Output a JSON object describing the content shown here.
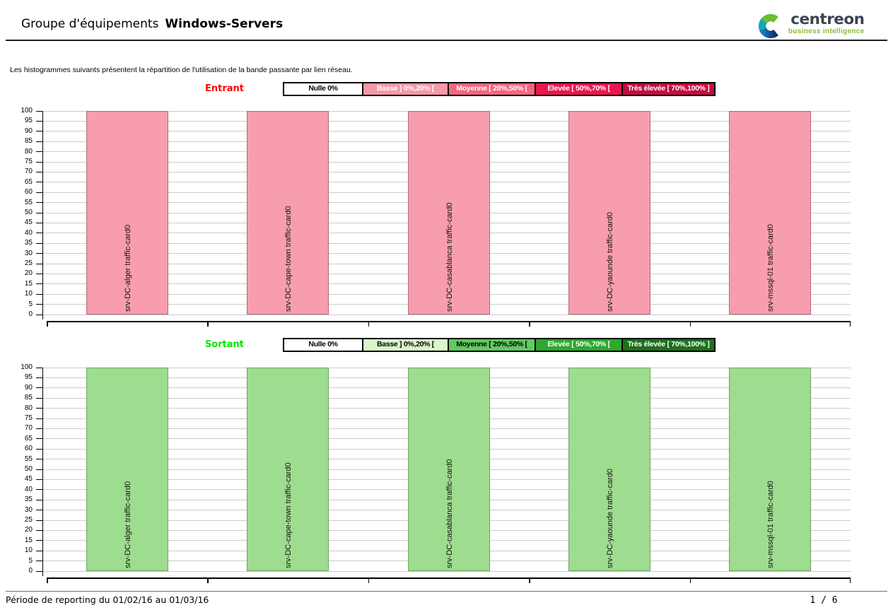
{
  "header": {
    "title_prefix": "Groupe d'équipements",
    "title_group": "Windows-Servers"
  },
  "logo": {
    "brand": "centreon",
    "tagline": "business intelligence",
    "brand_color": "#3b4552",
    "green": "#84bd32",
    "teal": "#12a9b4",
    "blue": "#1653a6"
  },
  "intro_text": "Les histogrammes suivants présentent la répartition de l'utilisation de la bande passante par lien réseau.",
  "footer": {
    "period": "Période de reporting du 01/02/16 au 01/03/16",
    "page_number": "1 / 6"
  },
  "chart_data": [
    {
      "type": "bar",
      "title": "Entrant",
      "title_color": "#ff0000",
      "categories": [
        "srv-DC-alger traffic-card0",
        "srv-DC-cape-town traffic-card0",
        "srv-DC-casablanca traffic-card0",
        "srv-DC-yaounde traffic-card0",
        "srv-mssql-01 traffic-card0"
      ],
      "values": [
        100,
        100,
        100,
        100,
        100
      ],
      "xlabel": "",
      "ylabel": "",
      "ylim": [
        0,
        100
      ],
      "ytick_step": 5,
      "grid": true,
      "legend_position": "top",
      "bar_fill": "#f89dad",
      "bar_border": "#b26a7c",
      "legend": [
        {
          "label": "Nulle 0%",
          "bg": "#ffffff",
          "text": "#000000"
        },
        {
          "label": "Basse ] 0%,20% [",
          "bg": "#f598a8",
          "text": "#ffffff"
        },
        {
          "label": "Moyenne [ 20%,50% [",
          "bg": "#f2677f",
          "text": "#ffffff"
        },
        {
          "label": "Elevée [ 50%,70% [",
          "bg": "#e8174e",
          "text": "#ffffff"
        },
        {
          "label": "Très élevée [ 70%,100% ]",
          "bg": "#c10d3f",
          "text": "#ffffff"
        }
      ]
    },
    {
      "type": "bar",
      "title": "Sortant",
      "title_color": "#00e400",
      "categories": [
        "srv-DC-alger traffic-card0",
        "srv-DC-cape-town traffic-card0",
        "srv-DC-casablanca traffic-card0",
        "srv-DC-yaounde traffic-card0",
        "srv-mssql-01 traffic-card0"
      ],
      "values": [
        100,
        100,
        100,
        100,
        100
      ],
      "xlabel": "",
      "ylabel": "",
      "ylim": [
        0,
        100
      ],
      "ytick_step": 5,
      "grid": true,
      "legend_position": "top",
      "bar_fill": "#9edc8f",
      "bar_border": "#6fa561",
      "legend": [
        {
          "label": "Nulle 0%",
          "bg": "#ffffff",
          "text": "#000000"
        },
        {
          "label": "Basse ] 0%,20% [",
          "bg": "#d9f6cb",
          "text": "#000000"
        },
        {
          "label": "Moyenne [ 20%,50% [",
          "bg": "#5fca5f",
          "text": "#000000"
        },
        {
          "label": "Elevée [ 50%,70% [",
          "bg": "#2ea82e",
          "text": "#ffffff"
        },
        {
          "label": "Très élevée [ 70%,100% ]",
          "bg": "#1c701c",
          "text": "#ffffff"
        }
      ]
    }
  ]
}
